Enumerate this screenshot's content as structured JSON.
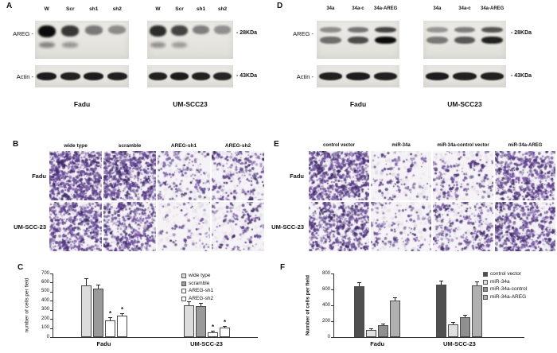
{
  "figure": {
    "background": "#ffffff",
    "stain_color": "#5a3d8f"
  },
  "panels": {
    "A": {
      "label": "A",
      "lanes": [
        "W",
        "Scr",
        "sh1",
        "sh2"
      ],
      "row_labels": [
        "AREG -",
        "Actin -"
      ],
      "markers": [
        "- 28KDa",
        "- 43KDa"
      ],
      "groups": [
        {
          "caption": "Fadu",
          "areg": [
            1.0,
            0.8,
            0.5,
            0.42
          ],
          "actin": [
            0.92,
            0.9,
            0.92,
            0.9
          ]
        },
        {
          "caption": "UM-SCC23",
          "areg": [
            0.85,
            0.75,
            0.48,
            0.4
          ],
          "actin": [
            0.9,
            0.92,
            0.9,
            0.88
          ]
        }
      ]
    },
    "D": {
      "label": "D",
      "lanes": [
        "34a",
        "34a-c",
        "34a-AREG"
      ],
      "row_labels": [
        "AREG -",
        "Actin -"
      ],
      "markers": [
        "- 28KDa",
        "- 43KDa"
      ],
      "groups": [
        {
          "caption": "Fadu",
          "areg": [
            0.55,
            0.7,
            1.0
          ],
          "actin": [
            0.9,
            0.92,
            0.9
          ]
        },
        {
          "caption": "UM-SCC23",
          "areg": [
            0.5,
            0.65,
            0.9
          ],
          "actin": [
            0.92,
            0.9,
            0.9
          ]
        }
      ]
    },
    "B": {
      "label": "B",
      "columns": [
        "wide type",
        "scramble",
        "AREG-sh1",
        "AREG-sh2"
      ],
      "rows": [
        "Fadu",
        "UM-SCC-23"
      ],
      "cell_density_per_field": [
        [
          430,
          390,
          100,
          140
        ],
        [
          310,
          270,
          45,
          80
        ]
      ]
    },
    "E": {
      "label": "E",
      "columns": [
        "control vector",
        "miR-34a",
        "miR-34a-control vector",
        "miR-34a-AREG"
      ],
      "rows": [
        "Fadu",
        "UM-SCC-23"
      ],
      "cell_density_per_field": [
        [
          420,
          70,
          110,
          330
        ],
        [
          330,
          100,
          180,
          330
        ]
      ]
    }
  },
  "chart_data": [
    {
      "type": "bar",
      "panel": "C",
      "title": "",
      "xlabel": "",
      "ylabel": "number of cells per field",
      "ylim": [
        0,
        700
      ],
      "yticks": [
        0,
        100,
        200,
        300,
        400,
        500,
        600,
        700
      ],
      "categories": [
        "Fadu",
        "UM-SCC-23"
      ],
      "legend_position": "top-right",
      "grid": false,
      "series": [
        {
          "name": "wide type",
          "color": "#dcdcdc",
          "values": [
            570,
            350
          ],
          "errors": [
            75,
            45
          ]
        },
        {
          "name": "scramble",
          "color": "#9a9a9a",
          "values": [
            530,
            345
          ],
          "errors": [
            45,
            35
          ]
        },
        {
          "name": "AREG-sh1",
          "color": "#ffffff",
          "values": [
            185,
            55
          ],
          "errors": [
            35,
            15
          ],
          "sig": [
            "*",
            "*"
          ]
        },
        {
          "name": "AREG-sh2",
          "color": "#ffffff",
          "values": [
            235,
            105
          ],
          "errors": [
            30,
            20
          ],
          "sig": [
            "*",
            "*"
          ]
        }
      ]
    },
    {
      "type": "bar",
      "panel": "F",
      "title": "",
      "xlabel": "",
      "ylabel": "Number of cells per field",
      "ylim": [
        0,
        800
      ],
      "yticks": [
        0,
        200,
        400,
        600,
        800
      ],
      "categories": [
        "Fadu",
        "UM-SCC-23"
      ],
      "legend_position": "top-right",
      "grid": false,
      "series": [
        {
          "name": "control vector",
          "color": "#4f4f4f",
          "values": [
            640,
            665
          ],
          "errors": [
            55,
            50
          ]
        },
        {
          "name": "miR-34a",
          "color": "#e0e0e0",
          "values": [
            95,
            160
          ],
          "errors": [
            20,
            30
          ]
        },
        {
          "name": "miR-34a-control",
          "color": "#8f8f8f",
          "values": [
            150,
            250
          ],
          "errors": [
            25,
            30
          ]
        },
        {
          "name": "miR-34a-AREG",
          "color": "#b0b0b0",
          "values": [
            460,
            650
          ],
          "errors": [
            40,
            55
          ]
        }
      ]
    }
  ]
}
